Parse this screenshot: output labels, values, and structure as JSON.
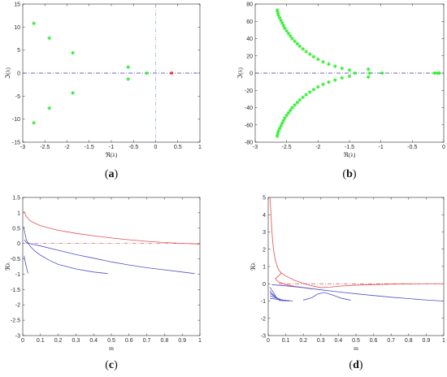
{
  "chart_data": [
    {
      "id": "a",
      "type": "scatter",
      "panel_label": "a",
      "xlabel": "ℜ(λ)",
      "ylabel": "ℑ(λ)",
      "xlim": [
        -3,
        1
      ],
      "ylim": [
        -15,
        15
      ],
      "xticks": [
        -3,
        -2.5,
        -2,
        -1.5,
        -1,
        -0.5,
        0,
        0.5,
        1
      ],
      "xtick_labels": [
        "-3",
        "-2.5",
        "-2",
        "-1.5",
        "-1",
        "-0.5",
        "0",
        "0.5",
        "1"
      ],
      "yticks": [
        -15,
        -10,
        -5,
        0,
        5,
        10,
        15
      ],
      "ytick_labels": [
        "-15",
        "-10",
        "-5",
        "0",
        "5",
        "10",
        "15"
      ],
      "reference_lines": [
        {
          "orientation": "horizontal",
          "value": 0,
          "color": "#3a3ab0",
          "style": "dashdot"
        },
        {
          "orientation": "vertical",
          "value": 0,
          "color": "#8fa8e8",
          "style": "dashdot"
        }
      ],
      "series": [
        {
          "color": "#33ee33",
          "marker": "*",
          "points": [
            [
              -2.75,
              10.8
            ],
            [
              -2.75,
              -10.8
            ],
            [
              -2.4,
              7.6
            ],
            [
              -2.4,
              -7.6
            ],
            [
              -1.87,
              4.4
            ],
            [
              -1.87,
              -4.3
            ],
            [
              -0.62,
              1.3
            ],
            [
              -0.62,
              -1.3
            ],
            [
              -0.2,
              0
            ]
          ]
        },
        {
          "color": "#ee3333",
          "marker": "*",
          "points": [
            [
              0.36,
              0
            ]
          ]
        }
      ]
    },
    {
      "id": "b",
      "type": "scatter",
      "panel_label": "b",
      "xlabel": "ℜ(λ)",
      "ylabel": "ℑ(λ)",
      "xlim": [
        -3,
        0
      ],
      "ylim": [
        -80,
        80
      ],
      "xticks": [
        -3,
        -2.5,
        -2,
        -1.5,
        -1,
        -0.5,
        0
      ],
      "xtick_labels": [
        "-3",
        "-2.5",
        "-2",
        "-1.5",
        "-1",
        "-0.5",
        "0"
      ],
      "yticks": [
        -80,
        -60,
        -40,
        -20,
        0,
        20,
        40,
        60,
        80
      ],
      "ytick_labels": [
        "-80",
        "-60",
        "-40",
        "-20",
        "0",
        "20",
        "40",
        "60",
        "80"
      ],
      "reference_lines": [
        {
          "orientation": "horizontal",
          "value": 0,
          "color": "#3a3ab0",
          "style": "dashdot"
        }
      ],
      "series": [
        {
          "color": "#33ee33",
          "marker": "*",
          "points": [
            [
              -2.65,
              73
            ],
            [
              -2.64,
              70
            ],
            [
              -2.63,
              67
            ],
            [
              -2.61,
              64
            ],
            [
              -2.59,
              61
            ],
            [
              -2.57,
              58
            ],
            [
              -2.55,
              55
            ],
            [
              -2.53,
              52
            ],
            [
              -2.5,
              49
            ],
            [
              -2.47,
              46
            ],
            [
              -2.44,
              43
            ],
            [
              -2.41,
              40
            ],
            [
              -2.37,
              37
            ],
            [
              -2.33,
              34
            ],
            [
              -2.29,
              31
            ],
            [
              -2.24,
              28
            ],
            [
              -2.19,
              25
            ],
            [
              -2.13,
              22
            ],
            [
              -2.07,
              19
            ],
            [
              -2,
              16
            ],
            [
              -1.92,
              13
            ],
            [
              -1.83,
              10.5
            ],
            [
              -1.73,
              8
            ],
            [
              -1.62,
              5.5
            ],
            [
              -1.5,
              3.5
            ],
            [
              -1.2,
              4.5
            ],
            [
              -1.41,
              0
            ],
            [
              -1.18,
              0
            ],
            [
              -0.98,
              0
            ],
            [
              -2.65,
              -73
            ],
            [
              -2.64,
              -70
            ],
            [
              -2.63,
              -67
            ],
            [
              -2.61,
              -64
            ],
            [
              -2.59,
              -61
            ],
            [
              -2.57,
              -58
            ],
            [
              -2.55,
              -55
            ],
            [
              -2.53,
              -52
            ],
            [
              -2.5,
              -49
            ],
            [
              -2.47,
              -46
            ],
            [
              -2.44,
              -43
            ],
            [
              -2.41,
              -40
            ],
            [
              -2.37,
              -37
            ],
            [
              -2.33,
              -34
            ],
            [
              -2.29,
              -31
            ],
            [
              -2.24,
              -28
            ],
            [
              -2.19,
              -25
            ],
            [
              -2.13,
              -22
            ],
            [
              -2.07,
              -19
            ],
            [
              -2,
              -16
            ],
            [
              -1.92,
              -13
            ],
            [
              -1.83,
              -10.5
            ],
            [
              -1.73,
              -8
            ],
            [
              -1.62,
              -5.5
            ],
            [
              -1.5,
              -3.5
            ],
            [
              -1.2,
              -4.5
            ],
            [
              -0.15,
              0
            ],
            [
              -0.1,
              0
            ],
            [
              -0.07,
              0
            ]
          ]
        }
      ]
    },
    {
      "id": "c",
      "type": "line",
      "panel_label": "c",
      "xlabel": "m",
      "ylabel": "ℜλ",
      "xlim": [
        0,
        1
      ],
      "ylim": [
        -3,
        1.5
      ],
      "xticks": [
        0,
        0.1,
        0.2,
        0.3,
        0.4,
        0.5,
        0.6,
        0.7,
        0.8,
        0.9,
        1
      ],
      "xtick_labels": [
        "0",
        "0.1",
        "0.2",
        "0.3",
        "0.4",
        "0.5",
        "0.6",
        "0.7",
        "0.8",
        "0.9",
        "1"
      ],
      "yticks": [
        -3,
        -2.5,
        -2,
        -1.5,
        -1,
        -0.5,
        0,
        0.5,
        1,
        1.5
      ],
      "ytick_labels": [
        "-3",
        "-2.5",
        "-2",
        "-1.5",
        "-1",
        "-0.5",
        "0",
        "0.5",
        "1",
        "1.5"
      ],
      "reference_lines": [
        {
          "orientation": "horizontal",
          "value": 0,
          "color": "#e05050",
          "style": "dashdot",
          "x_range": [
            0.02,
            1
          ]
        }
      ],
      "series": [
        {
          "color": "#e05050",
          "points": [
            [
              0.005,
              1.05
            ],
            [
              0.01,
              1.02
            ],
            [
              0.02,
              0.88
            ],
            [
              0.04,
              0.75
            ],
            [
              0.06,
              0.68
            ],
            [
              0.1,
              0.58
            ],
            [
              0.15,
              0.5
            ],
            [
              0.2,
              0.43
            ],
            [
              0.3,
              0.33
            ],
            [
              0.4,
              0.25
            ],
            [
              0.5,
              0.18
            ],
            [
              0.6,
              0.12
            ],
            [
              0.7,
              0.07
            ],
            [
              0.8,
              0.03
            ],
            [
              0.9,
              0.005
            ],
            [
              1,
              -0.02
            ]
          ]
        },
        {
          "color": "#5050cc",
          "points": [
            [
              0.005,
              0.55
            ],
            [
              0.01,
              0.4
            ],
            [
              0.02,
              0.12
            ],
            [
              0.04,
              -0.08
            ],
            [
              0.06,
              -0.2
            ],
            [
              0.08,
              -0.3
            ],
            [
              0.1,
              -0.38
            ],
            [
              0.15,
              -0.55
            ],
            [
              0.2,
              -0.68
            ],
            [
              0.3,
              -0.83
            ],
            [
              0.4,
              -0.93
            ],
            [
              0.48,
              -0.98
            ]
          ]
        },
        {
          "color": "#5050cc",
          "points": [
            [
              0.01,
              0.12
            ],
            [
              0.02,
              0.03
            ],
            [
              0.05,
              -0.02
            ],
            [
              0.1,
              -0.08
            ],
            [
              0.2,
              -0.22
            ],
            [
              0.3,
              -0.36
            ],
            [
              0.4,
              -0.48
            ],
            [
              0.5,
              -0.6
            ],
            [
              0.6,
              -0.7
            ],
            [
              0.7,
              -0.79
            ],
            [
              0.8,
              -0.86
            ],
            [
              0.9,
              -0.93
            ],
            [
              0.97,
              -0.98
            ]
          ]
        },
        {
          "color": "#5050cc",
          "points": [
            [
              0.008,
              -0.4
            ],
            [
              0.012,
              -0.55
            ],
            [
              0.018,
              -0.7
            ],
            [
              0.024,
              -0.85
            ],
            [
              0.03,
              -0.97
            ]
          ]
        }
      ]
    },
    {
      "id": "d",
      "type": "line",
      "panel_label": "d",
      "xlabel": "m",
      "ylabel": "ℜλ",
      "xlim": [
        0,
        1
      ],
      "ylim": [
        -3,
        5
      ],
      "xticks": [
        0,
        0.1,
        0.2,
        0.3,
        0.4,
        0.5,
        0.6,
        0.7,
        0.8,
        0.9,
        1
      ],
      "xtick_labels": [
        "0",
        "0.1",
        "0.2",
        "0.3",
        "0.4",
        "0.5",
        "0.6",
        "0.7",
        "0.8",
        "0.9",
        "1"
      ],
      "yticks": [
        -3,
        -2,
        -1,
        0,
        1,
        2,
        3,
        4,
        5
      ],
      "ytick_labels": [
        "-3",
        "-2",
        "-1",
        "0",
        "1",
        "2",
        "3",
        "4",
        "5"
      ],
      "reference_lines": [
        {
          "orientation": "horizontal",
          "value": 0,
          "color": "#e05050",
          "style": "dashdot",
          "x_range": [
            0.06,
            1
          ]
        }
      ],
      "series": [
        {
          "color": "#e05050",
          "points": [
            [
              0.01,
              5
            ],
            [
              0.015,
              4.2
            ],
            [
              0.02,
              3.2
            ],
            [
              0.025,
              2.5
            ],
            [
              0.03,
              2
            ],
            [
              0.04,
              1.4
            ],
            [
              0.05,
              1.05
            ],
            [
              0.06,
              0.8
            ],
            [
              0.075,
              0.62
            ]
          ]
        },
        {
          "color": "#e05050",
          "points": [
            [
              0.04,
              0.28
            ],
            [
              0.075,
              0.62
            ],
            [
              0.1,
              0.45
            ],
            [
              0.15,
              0.2
            ],
            [
              0.2,
              0.02
            ],
            [
              0.25,
              -0.12
            ],
            [
              0.3,
              -0.22
            ],
            [
              0.35,
              -0.2
            ],
            [
              0.4,
              -0.14
            ],
            [
              0.5,
              -0.08
            ],
            [
              0.6,
              -0.05
            ],
            [
              0.7,
              -0.02
            ],
            [
              0.8,
              -0.01
            ],
            [
              0.9,
              0
            ],
            [
              1,
              0
            ]
          ]
        },
        {
          "color": "#e05050",
          "points": [
            [
              0.04,
              0.28
            ],
            [
              0.06,
              0.1
            ],
            [
              0.1,
              -0.05
            ],
            [
              0.15,
              -0.15
            ],
            [
              0.2,
              -0.22
            ],
            [
              0.25,
              -0.3
            ]
          ]
        },
        {
          "color": "#5050cc",
          "points": [
            [
              0.02,
              -0.05
            ],
            [
              0.05,
              -0.08
            ],
            [
              0.1,
              -0.12
            ],
            [
              0.2,
              -0.22
            ],
            [
              0.3,
              -0.35
            ],
            [
              0.4,
              -0.47
            ],
            [
              0.5,
              -0.58
            ],
            [
              0.6,
              -0.68
            ],
            [
              0.7,
              -0.78
            ],
            [
              0.8,
              -0.86
            ],
            [
              0.9,
              -0.94
            ],
            [
              1,
              -1
            ]
          ]
        },
        {
          "color": "#5050cc",
          "points": [
            [
              0.2,
              -0.95
            ],
            [
              0.25,
              -0.8
            ],
            [
              0.28,
              -0.6
            ],
            [
              0.32,
              -0.5
            ],
            [
              0.38,
              -0.7
            ],
            [
              0.42,
              -0.85
            ],
            [
              0.47,
              -0.95
            ]
          ]
        },
        {
          "color": "#5050cc",
          "points": [
            [
              0.01,
              -0.2
            ],
            [
              0.02,
              -0.35
            ],
            [
              0.035,
              -0.6
            ],
            [
              0.05,
              -0.85
            ],
            [
              0.07,
              -1
            ]
          ]
        },
        {
          "color": "#5050cc",
          "points": [
            [
              0.01,
              -0.4
            ],
            [
              0.02,
              -0.55
            ],
            [
              0.04,
              -0.75
            ],
            [
              0.06,
              -0.9
            ],
            [
              0.085,
              -1
            ]
          ]
        },
        {
          "color": "#5050cc",
          "points": [
            [
              0.01,
              -0.55
            ],
            [
              0.03,
              -0.7
            ],
            [
              0.05,
              -0.82
            ],
            [
              0.08,
              -0.95
            ],
            [
              0.1,
              -1
            ]
          ]
        },
        {
          "color": "#5050cc",
          "points": [
            [
              0.01,
              -0.7
            ],
            [
              0.04,
              -0.82
            ],
            [
              0.07,
              -0.92
            ],
            [
              0.1,
              -0.98
            ],
            [
              0.12,
              -1
            ]
          ]
        },
        {
          "color": "#5050cc",
          "points": [
            [
              0.01,
              -0.85
            ],
            [
              0.05,
              -0.9
            ],
            [
              0.09,
              -0.95
            ],
            [
              0.12,
              -0.98
            ],
            [
              0.14,
              -1
            ]
          ]
        }
      ]
    }
  ]
}
